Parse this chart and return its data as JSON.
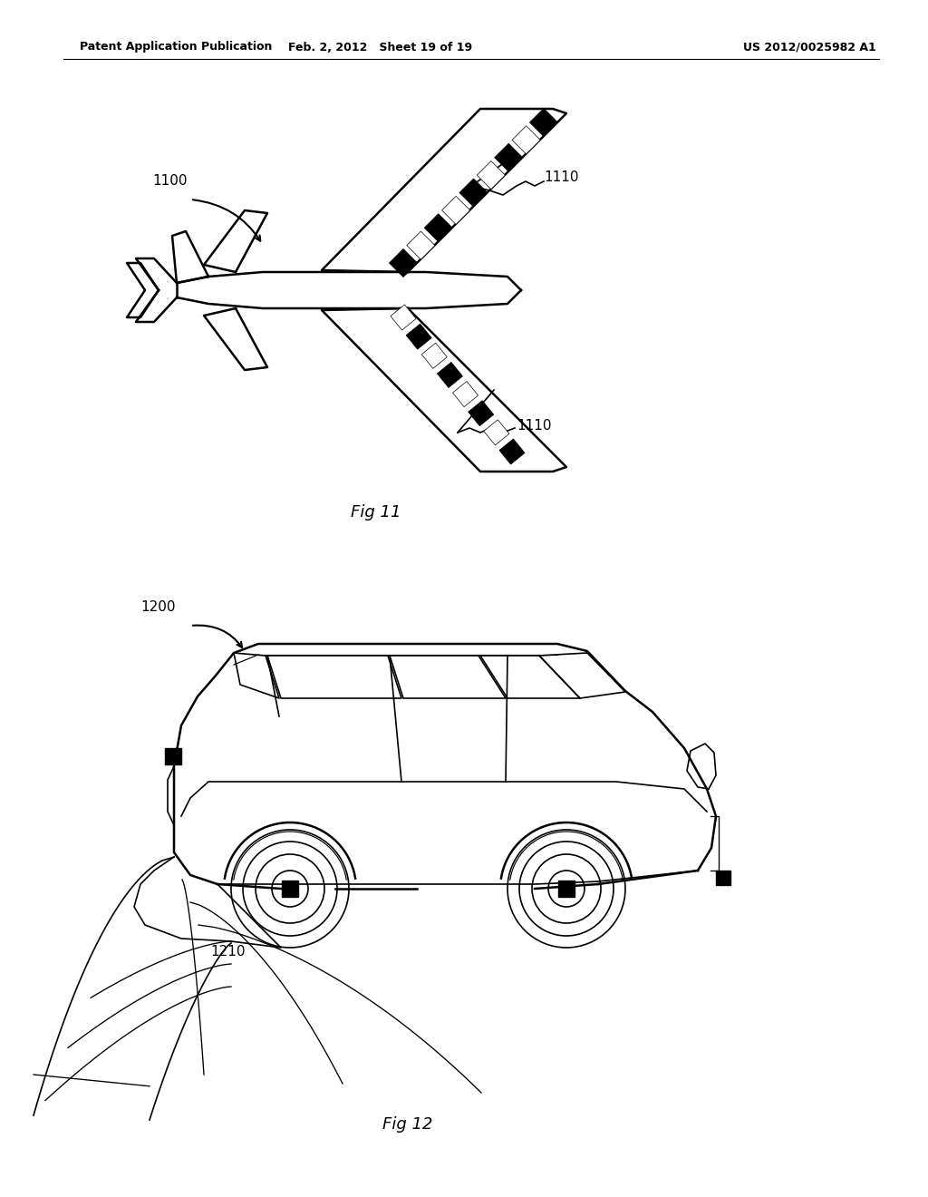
{
  "header_left": "Patent Application Publication",
  "header_middle": "Feb. 2, 2012   Sheet 19 of 19",
  "header_right": "US 2012/0025982 A1",
  "fig11_label": "Fig 11",
  "fig12_label": "Fig 12",
  "label_1100": "1100",
  "label_1110_top": "1110",
  "label_1110_bottom": "1110",
  "label_1200": "1200",
  "label_1210": "1210",
  "background_color": "#ffffff",
  "line_color": "#000000"
}
